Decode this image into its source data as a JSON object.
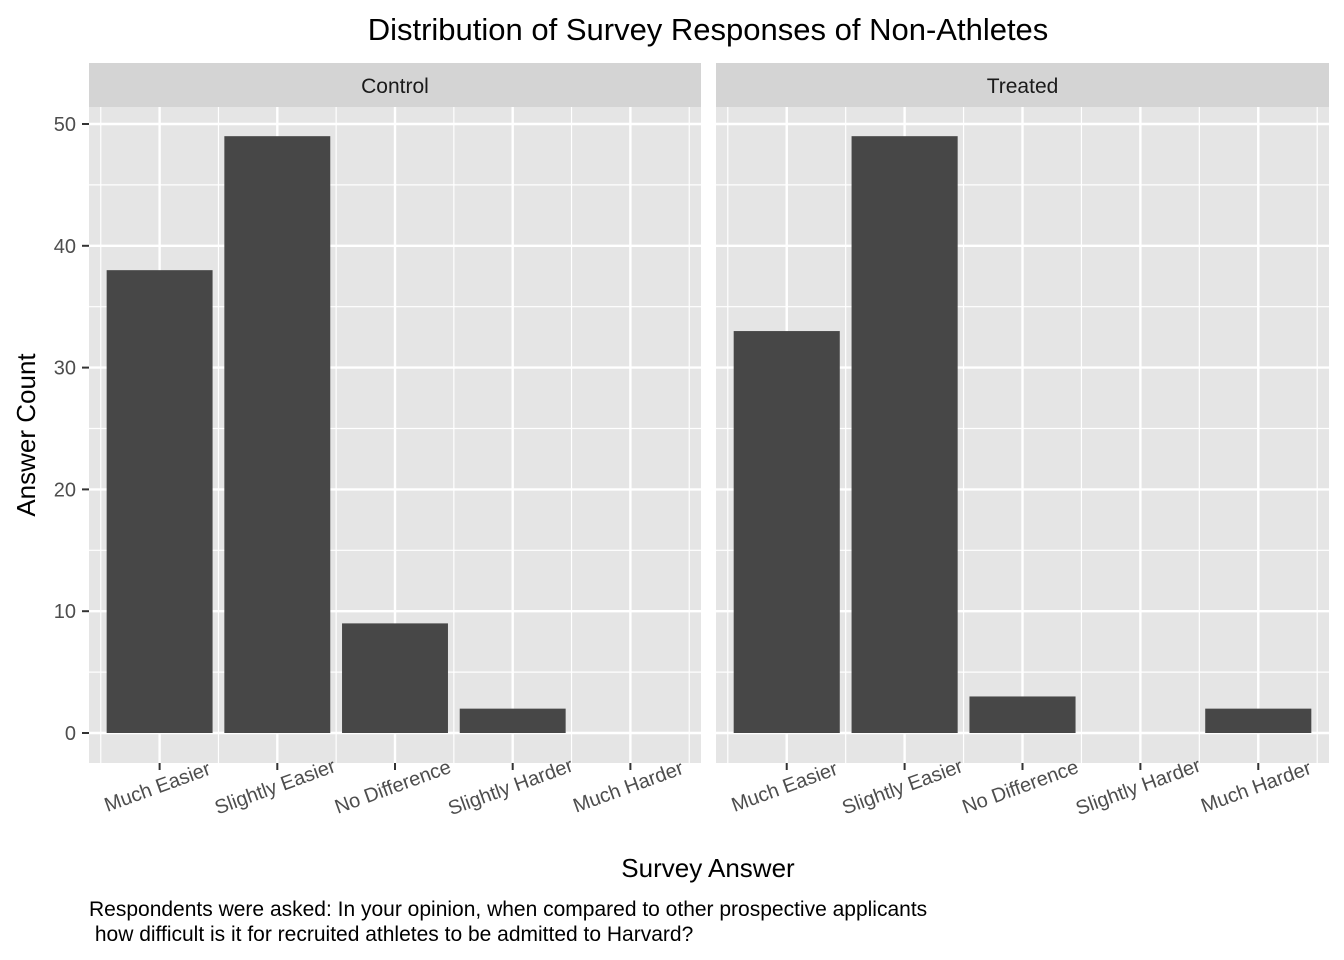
{
  "chart_data": {
    "type": "bar",
    "title": "Distribution of Survey Responses of Non-Athletes",
    "xlabel": "Survey Answer",
    "ylabel": "Answer Count",
    "categories": [
      "Much Easier",
      "Slightly Easier",
      "No Difference",
      "Slightly Harder",
      "Much Harder"
    ],
    "ylim": [
      0,
      50
    ],
    "yticks": [
      0,
      10,
      20,
      30,
      40,
      50
    ],
    "yticks_labels": [
      "0",
      "10",
      "20",
      "30",
      "40",
      "50"
    ],
    "grid": true,
    "bar_color": "#474747",
    "panel_background": "#e5e5e5",
    "strip_background": "#d4d4d4",
    "facets": [
      {
        "name": "Control",
        "values": [
          38,
          49,
          9,
          2,
          0
        ]
      },
      {
        "name": "Treated",
        "values": [
          33,
          49,
          3,
          0,
          2
        ]
      }
    ],
    "caption": [
      "Respondents were asked: In your opinion, when compared to other prospective applicants",
      " how difficult is it for recruited athletes to be admitted to Harvard?"
    ]
  }
}
